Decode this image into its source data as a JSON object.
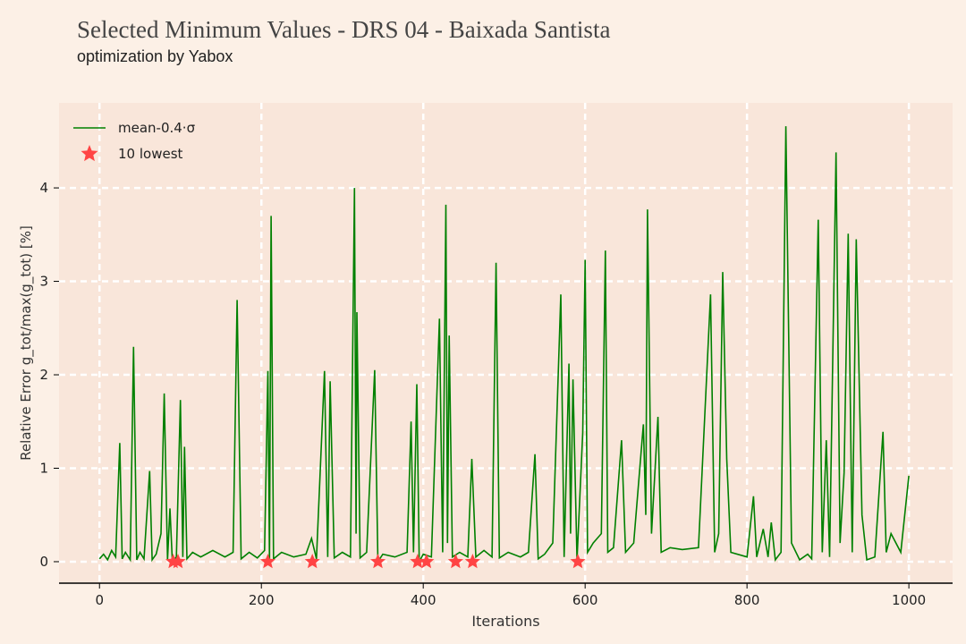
{
  "chart_data": {
    "type": "line",
    "title": "Selected Minimum Values - DRS 04 - Baixada Santista",
    "subtitle": "optimization by Yabox",
    "x_label": "Iterations",
    "y_label": "Relative Error g_tot/max(g_tot) [%]",
    "xlim": [
      -50,
      1054
    ],
    "ylim": [
      -0.23,
      4.91
    ],
    "xticks": [
      0,
      200,
      400,
      600,
      800,
      1000
    ],
    "yticks": [
      0,
      1,
      2,
      3,
      4
    ],
    "grid": true,
    "legend": "upper left",
    "series": [
      {
        "name": "mean-0.4·σ",
        "color": "#008000",
        "x": [
          0,
          5,
          10,
          15,
          20,
          25,
          28,
          32,
          38,
          42,
          46,
          50,
          55,
          62,
          65,
          70,
          76,
          80,
          84,
          87,
          90,
          95,
          100,
          103,
          105,
          108,
          115,
          125,
          140,
          155,
          165,
          170,
          175,
          185,
          195,
          204,
          208,
          210,
          212,
          215,
          225,
          240,
          255,
          262,
          268,
          278,
          282,
          285,
          290,
          300,
          310,
          315,
          317,
          318,
          322,
          330,
          340,
          344,
          350,
          365,
          380,
          385,
          388,
          392,
          395,
          400,
          410,
          420,
          424,
          428,
          430,
          432,
          436,
          445,
          455,
          460,
          465,
          475,
          485,
          490,
          494,
          505,
          520,
          530,
          538,
          542,
          550,
          560,
          570,
          574,
          580,
          582,
          585,
          590,
          597,
          600,
          603,
          610,
          620,
          625,
          628,
          635,
          645,
          650,
          660,
          672,
          675,
          677,
          682,
          690,
          694,
          705,
          720,
          740,
          755,
          760,
          765,
          770,
          775,
          780,
          800,
          808,
          812,
          820,
          826,
          830,
          835,
          842,
          848,
          855,
          865,
          875,
          880,
          888,
          893,
          898,
          902,
          910,
          915,
          920,
          925,
          930,
          935,
          942,
          948,
          958,
          968,
          972,
          978,
          990,
          1000
        ],
        "values": [
          0.03,
          0.08,
          0.02,
          0.12,
          0.05,
          1.27,
          0.03,
          0.1,
          0.02,
          2.3,
          0.02,
          0.1,
          0.03,
          0.97,
          0.02,
          0.08,
          0.3,
          1.8,
          0.02,
          0.57,
          0.0,
          0.05,
          1.73,
          0.05,
          1.23,
          0.03,
          0.1,
          0.05,
          0.12,
          0.05,
          0.1,
          2.8,
          0.03,
          0.1,
          0.04,
          0.12,
          2.04,
          0.0,
          3.7,
          0.03,
          0.1,
          0.05,
          0.08,
          0.25,
          0.03,
          2.04,
          0.05,
          1.93,
          0.04,
          0.1,
          0.05,
          4.0,
          0.3,
          2.67,
          0.04,
          0.1,
          2.05,
          0.0,
          0.08,
          0.05,
          0.1,
          1.5,
          0.1,
          1.9,
          0.0,
          0.08,
          0.05,
          2.6,
          0.1,
          3.82,
          0.2,
          2.42,
          0.05,
          0.1,
          0.05,
          1.1,
          0.05,
          0.12,
          0.05,
          3.2,
          0.04,
          0.1,
          0.05,
          0.1,
          1.15,
          0.03,
          0.08,
          0.2,
          2.86,
          0.05,
          2.12,
          0.3,
          1.95,
          0.02,
          1.38,
          3.23,
          0.1,
          0.2,
          0.3,
          3.33,
          0.1,
          0.15,
          1.3,
          0.1,
          0.2,
          1.47,
          0.5,
          3.77,
          0.3,
          1.55,
          0.1,
          0.15,
          0.13,
          0.15,
          2.86,
          0.1,
          0.3,
          3.1,
          1.1,
          0.1,
          0.05,
          0.7,
          0.05,
          0.35,
          0.05,
          0.42,
          0.02,
          0.1,
          4.66,
          0.2,
          0.02,
          0.08,
          0.03,
          3.66,
          0.1,
          1.3,
          0.05,
          4.38,
          0.2,
          0.95,
          3.51,
          0.1,
          3.45,
          0.5,
          0.02,
          0.05,
          1.39,
          0.1,
          0.3,
          0.1,
          0.92
        ]
      },
      {
        "name": "10 lowest",
        "color": "#ff4444",
        "marker": "star",
        "x": [
          91,
          97,
          208,
          263,
          344,
          393,
          404,
          440,
          461,
          591
        ],
        "values": [
          0,
          0,
          0,
          0,
          0,
          0,
          0,
          0,
          0,
          0
        ]
      }
    ]
  }
}
